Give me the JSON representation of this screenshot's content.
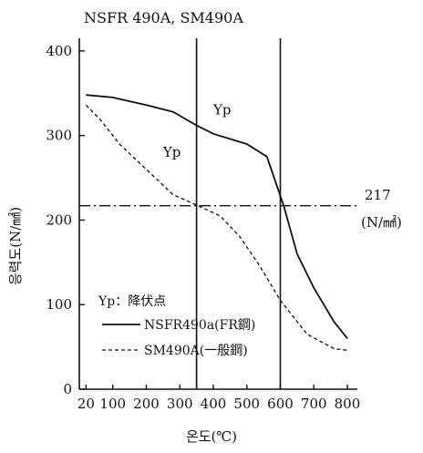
{
  "chart_data": {
    "type": "line",
    "title": "NSFR 490A, SM490A",
    "xlabel": "온도(℃)",
    "ylabel": "응력도(N/㎟)",
    "xlim": [
      0,
      830
    ],
    "ylim": [
      0,
      415
    ],
    "x_ticks": [
      20,
      100,
      200,
      300,
      400,
      500,
      600,
      700,
      800
    ],
    "y_ticks": [
      0,
      100,
      200,
      300,
      400
    ],
    "grid": false,
    "series": [
      {
        "name": "NSFR490a(FR鋼)",
        "style": "solid",
        "color": "#111111",
        "x": [
          20,
          100,
          200,
          280,
          350,
          400,
          500,
          560,
          610,
          650,
          700,
          760,
          800
        ],
        "y": [
          348,
          345,
          336,
          328,
          312,
          302,
          290,
          275,
          217,
          160,
          120,
          80,
          60
        ]
      },
      {
        "name": "SM490A(一般鋼)",
        "style": "dashed",
        "color": "#111111",
        "x": [
          20,
          60,
          120,
          200,
          280,
          360,
          420,
          480,
          540,
          600,
          680,
          760,
          800
        ],
        "y": [
          336,
          320,
          290,
          260,
          230,
          216,
          205,
          180,
          145,
          105,
          65,
          48,
          46
        ]
      }
    ],
    "reference_lines": {
      "vertical_x": [
        350,
        600
      ],
      "horizontal_y": 217,
      "horizontal_label_value": "217",
      "horizontal_label_unit": "(N/㎟)"
    },
    "annotations": [
      {
        "text": "Yp",
        "x": 400,
        "y": 325
      },
      {
        "text": "Yp",
        "x": 250,
        "y": 275
      }
    ],
    "legend": {
      "placement": "bottom-left",
      "header": "Yp：降伏点",
      "entries": [
        "NSFR490a(FR鋼)",
        "SM490A(一般鋼)"
      ]
    }
  }
}
